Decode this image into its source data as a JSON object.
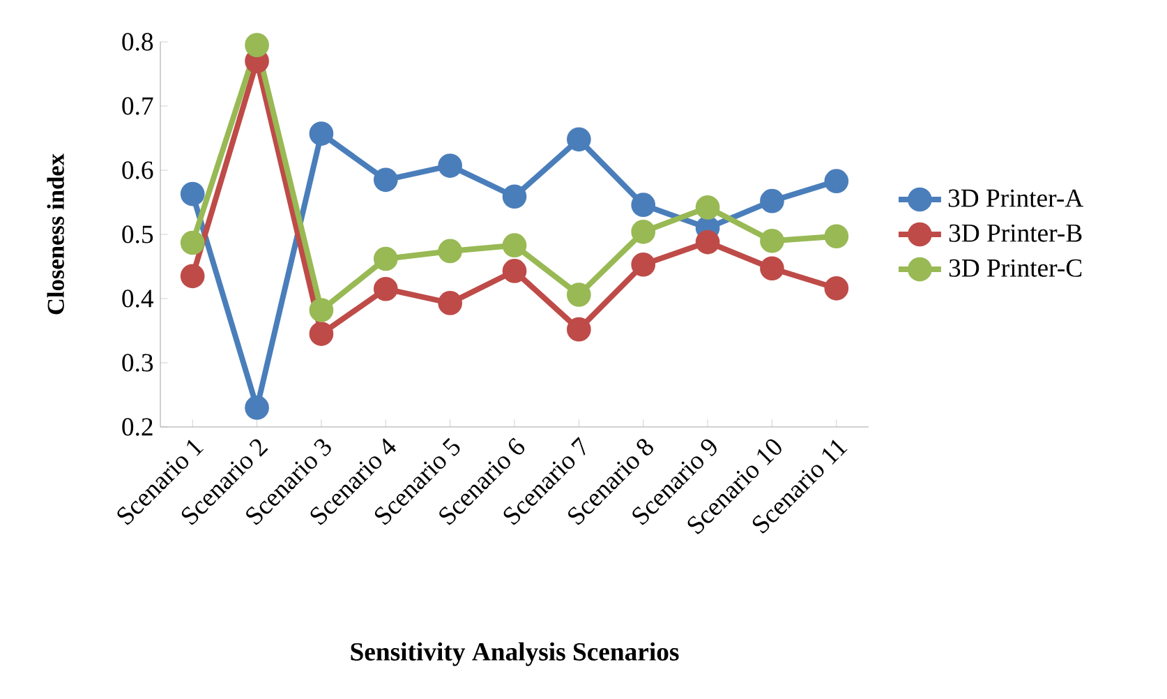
{
  "chart_data": {
    "type": "line",
    "xlabel": "Sensitivity Analysis Scenarios",
    "ylabel": "Closeness index",
    "categories": [
      "Scenario 1",
      "Scenario 2",
      "Scenario 3",
      "Scenario 4",
      "Scenario 5",
      "Scenario 6",
      "Scenario 7",
      "Scenario 8",
      "Scenario 9",
      "Scenario 10",
      "Scenario 11"
    ],
    "series": [
      {
        "name": "3D Printer-A",
        "color": "#4a7ebb",
        "values": [
          0.563,
          0.23,
          0.657,
          0.585,
          0.607,
          0.559,
          0.648,
          0.546,
          0.51,
          0.552,
          0.583
        ]
      },
      {
        "name": "3D Printer-B",
        "color": "#be4b48",
        "values": [
          0.435,
          0.77,
          0.345,
          0.415,
          0.393,
          0.443,
          0.352,
          0.453,
          0.488,
          0.447,
          0.416
        ]
      },
      {
        "name": "3D Printer-C",
        "color": "#98b954",
        "values": [
          0.487,
          0.795,
          0.382,
          0.462,
          0.474,
          0.483,
          0.406,
          0.504,
          0.542,
          0.49,
          0.497
        ]
      }
    ],
    "ylim": [
      0.2,
      0.8
    ],
    "yticks": [
      0.2,
      0.3,
      0.4,
      0.5,
      0.6,
      0.7,
      0.8
    ],
    "legend": "right",
    "marker": "circle",
    "line_style": "solid"
  }
}
